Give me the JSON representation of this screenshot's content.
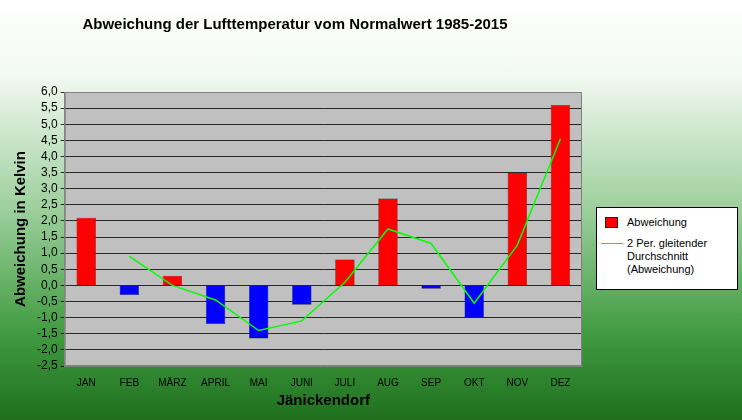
{
  "chart_data": {
    "type": "bar",
    "title": "Abweichung der Lufttemperatur vom Normalwert 1985-2015",
    "x_label": "Jänickendorf",
    "y_label": "Abweichung in Kelvin",
    "categories": [
      "JAN",
      "FEB",
      "MÄRZ",
      "APRIL",
      "MAI",
      "JUNI",
      "JULI",
      "AUG",
      "SEP",
      "OKT",
      "NOV",
      "DEZ"
    ],
    "series": [
      {
        "name": "Abweichung",
        "type": "bar",
        "color": "#ff0000",
        "colors": [
          "#ff0000",
          "#0000ff",
          "#ff0000",
          "#0000ff",
          "#0000ff",
          "#0000ff",
          "#ff0000",
          "#ff0000",
          "#0000ff",
          "#0000ff",
          "#ff0000",
          "#ff0000"
        ],
        "values": [
          2.1,
          -0.3,
          0.3,
          -1.2,
          -1.65,
          -0.6,
          0.8,
          2.7,
          -0.1,
          -1.0,
          3.5,
          5.6
        ]
      },
      {
        "name": "2 Per. gleitender Durchschnitt (Abweichung)",
        "type": "line",
        "color": "#00ff00",
        "values": [
          null,
          0.9,
          0.0,
          -0.45,
          -1.4,
          -1.1,
          0.1,
          1.75,
          1.3,
          -0.55,
          1.25,
          4.55
        ]
      }
    ],
    "ylim": [
      -2.5,
      6
    ],
    "yticks": [
      {
        "value": -2.5,
        "label": "-2,5"
      },
      {
        "value": -2,
        "label": "-2,0"
      },
      {
        "value": -1.5,
        "label": "-1,5"
      },
      {
        "value": -1,
        "label": "-1,0"
      },
      {
        "value": -0.5,
        "label": "-0,5"
      },
      {
        "value": 0,
        "label": "0,0"
      },
      {
        "value": 0.5,
        "label": "0,5"
      },
      {
        "value": 1,
        "label": "1,0"
      },
      {
        "value": 1.5,
        "label": "1,5"
      },
      {
        "value": 2,
        "label": "2,0"
      },
      {
        "value": 2.5,
        "label": "2,5"
      },
      {
        "value": 3,
        "label": "3,0"
      },
      {
        "value": 3.5,
        "label": "3,5"
      },
      {
        "value": 4,
        "label": "4,0"
      },
      {
        "value": 4.5,
        "label": "4,5"
      },
      {
        "value": 5,
        "label": "5,0"
      },
      {
        "value": 5.5,
        "label": "5,5"
      },
      {
        "value": 6,
        "label": "6,0"
      }
    ],
    "grid": true,
    "legend": "right"
  }
}
